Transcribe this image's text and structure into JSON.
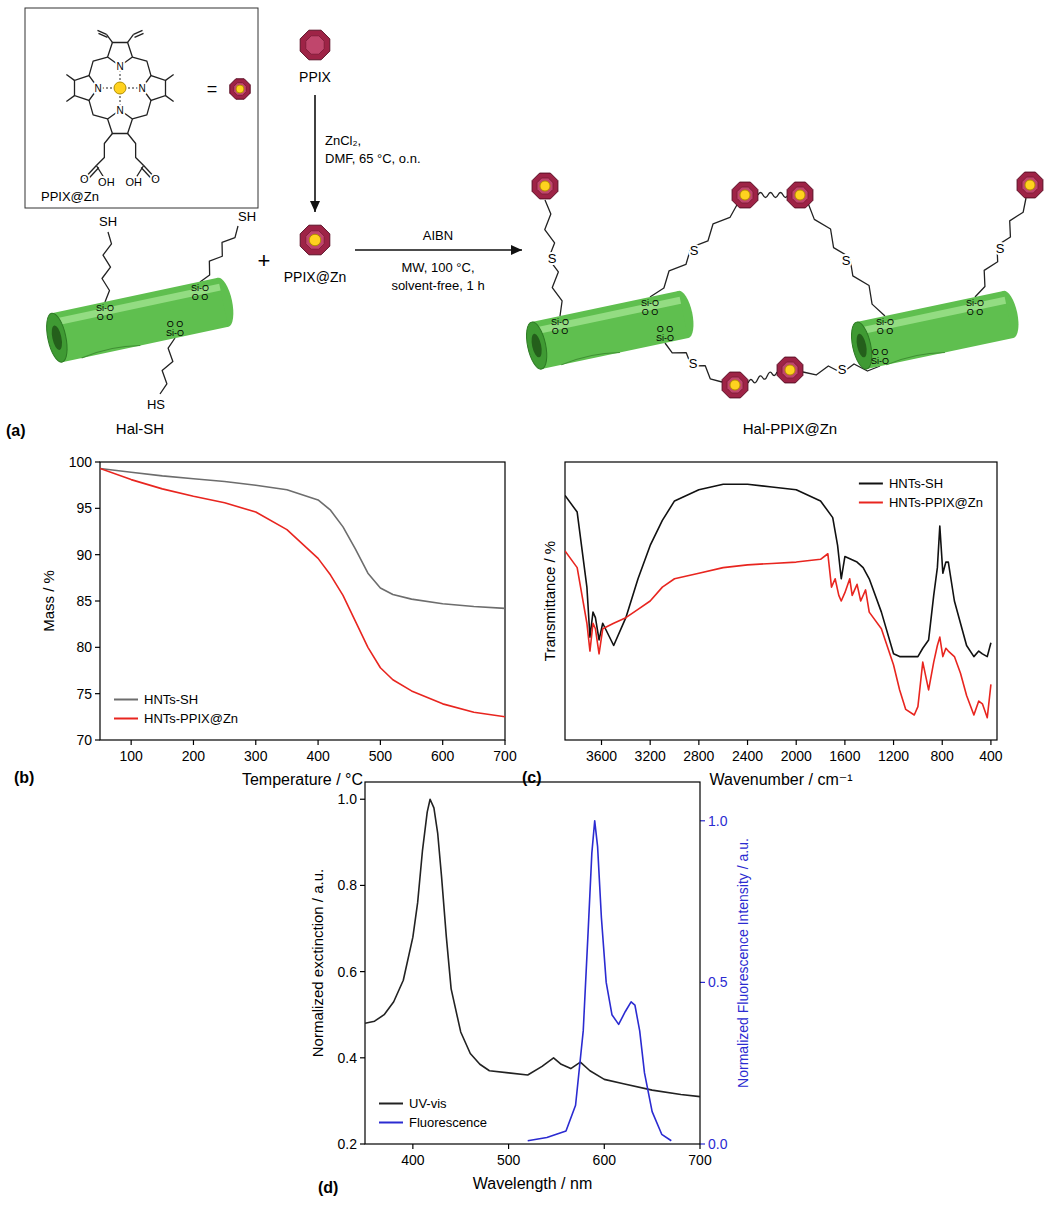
{
  "panel_labels": {
    "a": "(a)",
    "b": "(b)",
    "c": "(c)",
    "d": "(d)"
  },
  "scheme": {
    "structure": {
      "nitrogen": "N",
      "oxygen": "O",
      "hydroxyl": "OH",
      "name": "PPIX@Zn"
    },
    "equals": "=",
    "plus": "+",
    "reagent": "PPIX",
    "metalation_conditions": [
      "ZnCl₂,",
      "DMF, 65 °C, o.n."
    ],
    "metalated": "PPIX@Zn",
    "initiator": "AIBN",
    "coupling_conditions": [
      "MW, 100 °C,",
      "solvent-free, 1 h"
    ],
    "starting_material": "Hal-SH",
    "product": "Hal-PPIX@Zn",
    "thiol": "SH",
    "thiol_reversed": "HS",
    "sulfide": "S",
    "silane": "Si-O",
    "siloxane_oxygens": "O O"
  },
  "chart_data": [
    {
      "type": "line",
      "x_label": "Temperature / °C",
      "y_label": "Mass / %",
      "xlim": [
        50,
        700
      ],
      "xticks": [
        100,
        200,
        300,
        400,
        500,
        600,
        700
      ],
      "ylim": [
        70,
        100
      ],
      "yticks": [
        70,
        75,
        80,
        85,
        90,
        95,
        100
      ],
      "grid": false,
      "legend": "lower left",
      "series": [
        {
          "name": "HNTs-SH",
          "color": "#6d6d6d",
          "x": [
            50,
            100,
            150,
            200,
            250,
            300,
            350,
            400,
            420,
            440,
            460,
            480,
            500,
            520,
            550,
            600,
            650,
            700
          ],
          "values": [
            99.3,
            98.9,
            98.5,
            98.2,
            97.9,
            97.5,
            97.0,
            95.9,
            94.8,
            93.0,
            90.6,
            88.0,
            86.4,
            85.7,
            85.2,
            84.7,
            84.4,
            84.2
          ]
        },
        {
          "name": "HNTs-PPIX@Zn",
          "color": "#e8251f",
          "x": [
            50,
            100,
            150,
            200,
            250,
            300,
            350,
            400,
            420,
            440,
            460,
            480,
            500,
            520,
            550,
            600,
            650,
            700
          ],
          "values": [
            99.3,
            98.1,
            97.1,
            96.3,
            95.6,
            94.6,
            92.7,
            89.6,
            87.8,
            85.6,
            82.8,
            80.0,
            77.8,
            76.5,
            75.3,
            73.9,
            73.0,
            72.5
          ]
        }
      ]
    },
    {
      "type": "line",
      "x_label": "Wavenumber / cm⁻¹",
      "y_label": "Transmittance / %",
      "xlim": [
        3900,
        350
      ],
      "xticks": [
        3600,
        3200,
        2800,
        2400,
        2000,
        1600,
        1200,
        800,
        400
      ],
      "ylim": [
        0,
        100
      ],
      "tick_labels": "x",
      "grid": false,
      "legend": "upper right",
      "series": [
        {
          "name": "HNTs-SH",
          "color": "#111111",
          "x": [
            3900,
            3800,
            3720,
            3695,
            3670,
            3650,
            3620,
            3590,
            3500,
            3400,
            3300,
            3200,
            3100,
            3000,
            2800,
            2600,
            2400,
            2200,
            2000,
            1800,
            1700,
            1660,
            1630,
            1600,
            1550,
            1500,
            1450,
            1400,
            1300,
            1200,
            1150,
            1100,
            1030,
            1000,
            960,
            912,
            870,
            840,
            820,
            795,
            770,
            750,
            700,
            650,
            600,
            540,
            500,
            470,
            430,
            400
          ],
          "values": [
            88,
            82,
            55,
            37,
            46,
            44,
            36,
            42,
            34,
            44,
            58,
            70,
            79,
            86,
            90,
            92,
            92,
            91,
            90,
            86,
            80,
            70,
            58,
            66,
            65,
            64,
            62,
            58,
            46,
            31,
            30,
            30,
            30,
            30,
            33,
            36,
            52,
            62,
            77,
            60,
            64,
            64,
            50,
            42,
            34,
            30,
            32,
            31,
            30,
            35
          ]
        },
        {
          "name": "HNTs-PPIX@Zn",
          "color": "#e8251f",
          "x": [
            3900,
            3800,
            3720,
            3695,
            3670,
            3650,
            3620,
            3590,
            3500,
            3400,
            3300,
            3200,
            3100,
            3000,
            2900,
            2800,
            2600,
            2400,
            2200,
            2000,
            1800,
            1740,
            1710,
            1680,
            1650,
            1630,
            1600,
            1560,
            1540,
            1500,
            1470,
            1430,
            1400,
            1300,
            1200,
            1150,
            1100,
            1030,
            1000,
            960,
            912,
            870,
            840,
            820,
            795,
            770,
            750,
            700,
            650,
            600,
            540,
            500,
            470,
            430,
            400
          ],
          "values": [
            68,
            62,
            42,
            32,
            42,
            40,
            31,
            40,
            42,
            44,
            47,
            50,
            55,
            58,
            59,
            60,
            62,
            63,
            63.5,
            64,
            65,
            67,
            55,
            58,
            52,
            50,
            53,
            58,
            52,
            56,
            50,
            54,
            46,
            40,
            27,
            18,
            11,
            9,
            12,
            28,
            18,
            28,
            34,
            37,
            30,
            33,
            32,
            30,
            24,
            16,
            9,
            14,
            13,
            8,
            20
          ]
        }
      ]
    },
    {
      "type": "line",
      "x_label": "Wavelength / nm",
      "y_label": "Normalized exctinction / a.u.",
      "y2_label": "Normalized Fluorescence Intensity / a.u.",
      "xlim": [
        350,
        700
      ],
      "xticks": [
        400,
        500,
        600,
        700
      ],
      "ylim": [
        0.2,
        1.04
      ],
      "yticks": [
        0.2,
        0.4,
        0.6,
        0.8,
        {
          "value": 1,
          "label": "1.0"
        }
      ],
      "y2lim": [
        0,
        1.12
      ],
      "y2ticks": [
        {
          "value": 0,
          "label": "0.0"
        },
        0.5,
        {
          "value": 1,
          "label": "1.0"
        }
      ],
      "grid": false,
      "legend": "lower left",
      "series": [
        {
          "name": "UV-vis",
          "color": "#222222",
          "x": [
            350,
            360,
            370,
            380,
            390,
            400,
            405,
            410,
            415,
            418,
            422,
            426,
            430,
            435,
            440,
            450,
            460,
            470,
            480,
            500,
            520,
            535,
            547,
            555,
            565,
            575,
            585,
            600,
            620,
            650,
            680,
            700
          ],
          "values": [
            0.48,
            0.485,
            0.5,
            0.53,
            0.58,
            0.68,
            0.76,
            0.88,
            0.97,
            1.0,
            0.98,
            0.92,
            0.82,
            0.68,
            0.56,
            0.46,
            0.41,
            0.385,
            0.37,
            0.365,
            0.36,
            0.38,
            0.4,
            0.385,
            0.375,
            0.39,
            0.37,
            0.35,
            0.34,
            0.325,
            0.315,
            0.31
          ]
        },
        {
          "name": "Fluorescence",
          "color": "#2b2bd1",
          "axis": "y2",
          "x": [
            520,
            540,
            560,
            570,
            578,
            583,
            587,
            590,
            593,
            597,
            602,
            608,
            615,
            622,
            628,
            632,
            637,
            642,
            650,
            660,
            670
          ],
          "values": [
            0.01,
            0.02,
            0.04,
            0.12,
            0.35,
            0.65,
            0.9,
            1.0,
            0.92,
            0.7,
            0.5,
            0.4,
            0.37,
            0.41,
            0.44,
            0.43,
            0.35,
            0.22,
            0.1,
            0.03,
            0.01
          ]
        }
      ]
    }
  ]
}
